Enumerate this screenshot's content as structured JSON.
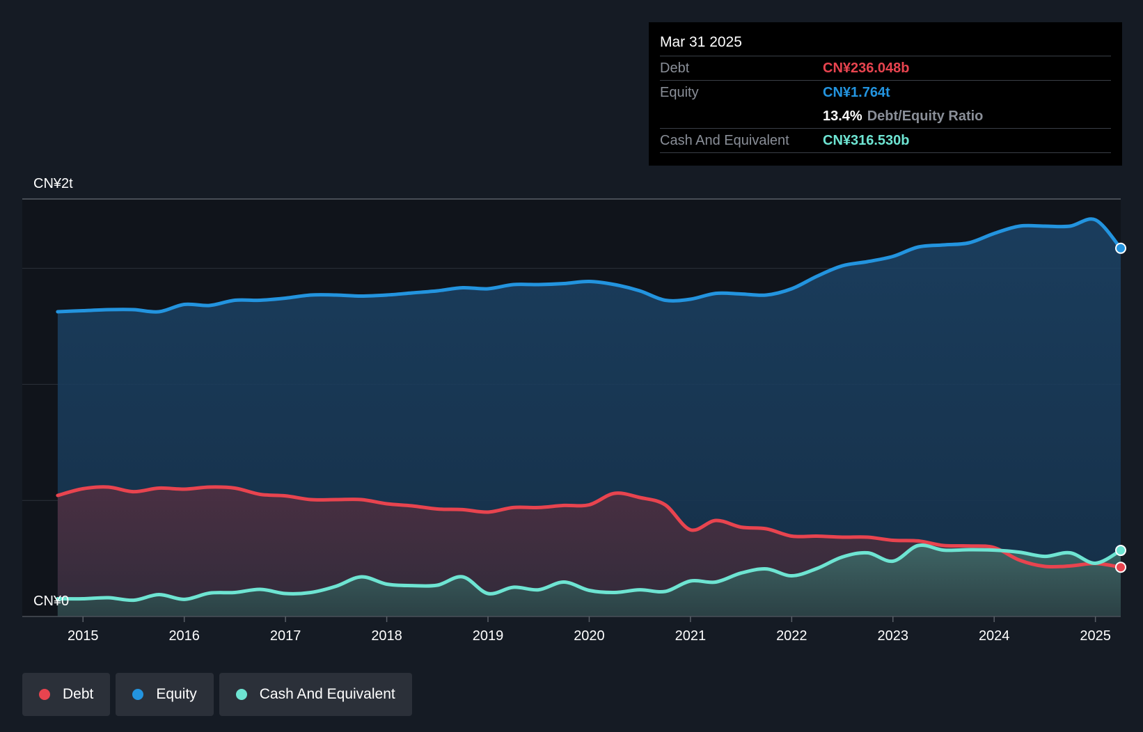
{
  "colors": {
    "background": "#151b24",
    "plot_background": "#10141b",
    "debt": "#e8444f",
    "equity": "#2394df",
    "cash": "#6ee4d2",
    "grid": "#2c323b"
  },
  "tooltip": {
    "date": "Mar 31 2025",
    "debt_label": "Debt",
    "debt_value": "CN¥236.048b",
    "equity_label": "Equity",
    "equity_value": "CN¥1.764t",
    "ratio_value": "13.4%",
    "ratio_label": "Debt/Equity Ratio",
    "cash_label": "Cash And Equivalent",
    "cash_value": "CN¥316.530b"
  },
  "legend": [
    {
      "label": "Debt",
      "color_key": "debt"
    },
    {
      "label": "Equity",
      "color_key": "equity"
    },
    {
      "label": "Cash And Equivalent",
      "color_key": "cash"
    }
  ],
  "chart_data": {
    "type": "area",
    "y_top_label": "CN¥2t",
    "y_bottom_label": "CN¥0",
    "ylim": [
      0,
      2000
    ],
    "xlim": [
      2014.4,
      2025.25
    ],
    "x_ticks": [
      "2015",
      "2016",
      "2017",
      "2018",
      "2019",
      "2020",
      "2021",
      "2022",
      "2023",
      "2024",
      "2025"
    ],
    "x_tick_values": [
      2015,
      2016,
      2017,
      2018,
      2019,
      2020,
      2021,
      2022,
      2023,
      2024,
      2025
    ],
    "grid": true,
    "legend_position": "bottom-left",
    "units": "CN¥ billions",
    "series": [
      {
        "name": "Debt",
        "color_key": "debt",
        "points": [
          [
            2014.75,
            580
          ],
          [
            2015.0,
            612
          ],
          [
            2015.25,
            620
          ],
          [
            2015.5,
            598
          ],
          [
            2015.75,
            615
          ],
          [
            2016.0,
            610
          ],
          [
            2016.25,
            620
          ],
          [
            2016.5,
            615
          ],
          [
            2016.75,
            585
          ],
          [
            2017.0,
            578
          ],
          [
            2017.25,
            560
          ],
          [
            2017.5,
            560
          ],
          [
            2017.75,
            560
          ],
          [
            2018.0,
            540
          ],
          [
            2018.25,
            530
          ],
          [
            2018.5,
            515
          ],
          [
            2018.75,
            512
          ],
          [
            2019.0,
            500
          ],
          [
            2019.25,
            522
          ],
          [
            2019.5,
            522
          ],
          [
            2019.75,
            532
          ],
          [
            2020.0,
            535
          ],
          [
            2020.25,
            590
          ],
          [
            2020.5,
            570
          ],
          [
            2020.75,
            535
          ],
          [
            2021.0,
            415
          ],
          [
            2021.25,
            460
          ],
          [
            2021.5,
            428
          ],
          [
            2021.75,
            420
          ],
          [
            2022.0,
            385
          ],
          [
            2022.25,
            385
          ],
          [
            2022.5,
            380
          ],
          [
            2022.75,
            380
          ],
          [
            2023.0,
            365
          ],
          [
            2023.25,
            362
          ],
          [
            2023.5,
            340
          ],
          [
            2023.75,
            338
          ],
          [
            2024.0,
            330
          ],
          [
            2024.25,
            270
          ],
          [
            2024.5,
            240
          ],
          [
            2024.75,
            242
          ],
          [
            2025.0,
            254
          ],
          [
            2025.25,
            236
          ]
        ]
      },
      {
        "name": "Equity",
        "color_key": "equity",
        "points": [
          [
            2014.75,
            1460
          ],
          [
            2015.0,
            1465
          ],
          [
            2015.25,
            1470
          ],
          [
            2015.5,
            1470
          ],
          [
            2015.75,
            1460
          ],
          [
            2016.0,
            1495
          ],
          [
            2016.25,
            1490
          ],
          [
            2016.5,
            1515
          ],
          [
            2016.75,
            1515
          ],
          [
            2017.0,
            1525
          ],
          [
            2017.25,
            1540
          ],
          [
            2017.5,
            1540
          ],
          [
            2017.75,
            1535
          ],
          [
            2018.0,
            1540
          ],
          [
            2018.25,
            1550
          ],
          [
            2018.5,
            1560
          ],
          [
            2018.75,
            1575
          ],
          [
            2019.0,
            1570
          ],
          [
            2019.25,
            1590
          ],
          [
            2019.5,
            1590
          ],
          [
            2019.75,
            1595
          ],
          [
            2020.0,
            1605
          ],
          [
            2020.25,
            1590
          ],
          [
            2020.5,
            1560
          ],
          [
            2020.75,
            1515
          ],
          [
            2021.0,
            1520
          ],
          [
            2021.25,
            1548
          ],
          [
            2021.5,
            1545
          ],
          [
            2021.75,
            1540
          ],
          [
            2022.0,
            1570
          ],
          [
            2022.25,
            1630
          ],
          [
            2022.5,
            1680
          ],
          [
            2022.75,
            1700
          ],
          [
            2023.0,
            1725
          ],
          [
            2023.25,
            1770
          ],
          [
            2023.5,
            1780
          ],
          [
            2023.75,
            1790
          ],
          [
            2024.0,
            1835
          ],
          [
            2024.25,
            1870
          ],
          [
            2024.5,
            1870
          ],
          [
            2024.75,
            1870
          ],
          [
            2025.0,
            1900
          ],
          [
            2025.25,
            1764
          ]
        ]
      },
      {
        "name": "Cash And Equivalent",
        "color_key": "cash",
        "points": [
          [
            2014.75,
            85
          ],
          [
            2015.0,
            85
          ],
          [
            2015.25,
            90
          ],
          [
            2015.5,
            78
          ],
          [
            2015.75,
            105
          ],
          [
            2016.0,
            82
          ],
          [
            2016.25,
            112
          ],
          [
            2016.5,
            115
          ],
          [
            2016.75,
            130
          ],
          [
            2017.0,
            110
          ],
          [
            2017.25,
            115
          ],
          [
            2017.5,
            145
          ],
          [
            2017.75,
            190
          ],
          [
            2018.0,
            155
          ],
          [
            2018.25,
            148
          ],
          [
            2018.5,
            150
          ],
          [
            2018.75,
            190
          ],
          [
            2019.0,
            110
          ],
          [
            2019.25,
            140
          ],
          [
            2019.5,
            128
          ],
          [
            2019.75,
            165
          ],
          [
            2020.0,
            125
          ],
          [
            2020.25,
            115
          ],
          [
            2020.5,
            128
          ],
          [
            2020.75,
            120
          ],
          [
            2021.0,
            170
          ],
          [
            2021.25,
            165
          ],
          [
            2021.5,
            208
          ],
          [
            2021.75,
            228
          ],
          [
            2022.0,
            195
          ],
          [
            2022.25,
            230
          ],
          [
            2022.5,
            285
          ],
          [
            2022.75,
            305
          ],
          [
            2023.0,
            265
          ],
          [
            2023.25,
            340
          ],
          [
            2023.5,
            318
          ],
          [
            2023.75,
            320
          ],
          [
            2024.0,
            318
          ],
          [
            2024.25,
            308
          ],
          [
            2024.5,
            288
          ],
          [
            2024.75,
            305
          ],
          [
            2025.0,
            255
          ],
          [
            2025.25,
            316.53
          ]
        ]
      }
    ]
  }
}
